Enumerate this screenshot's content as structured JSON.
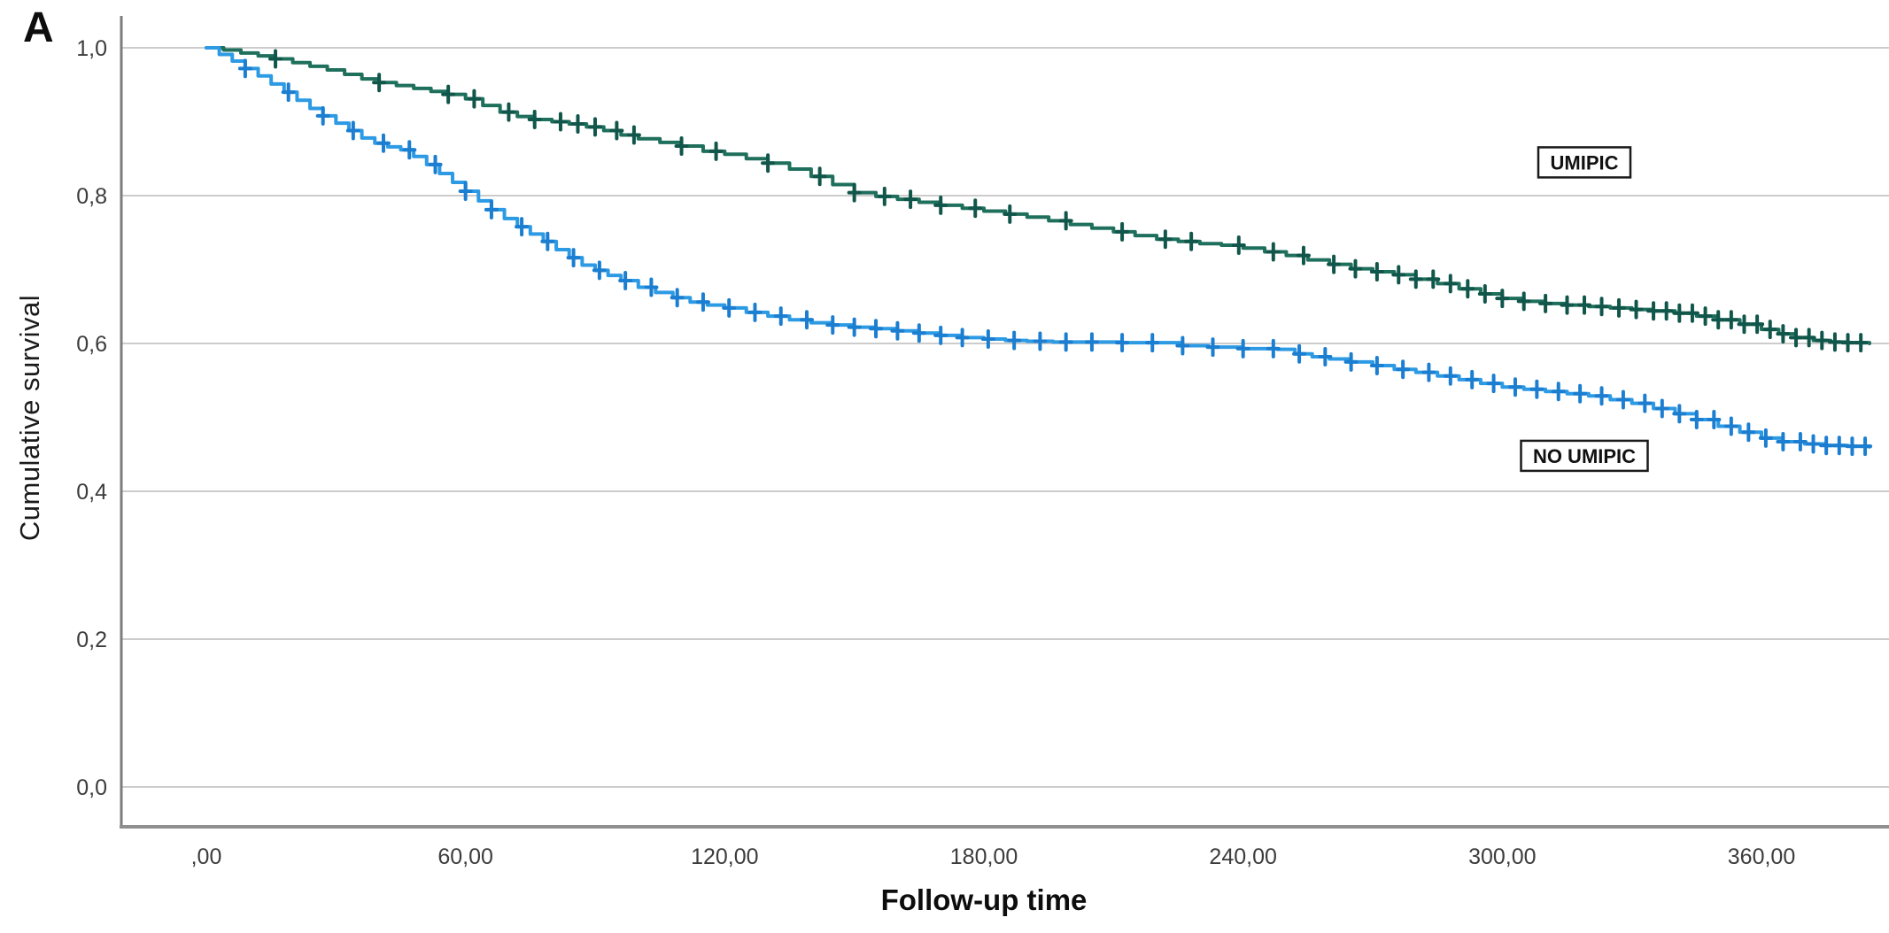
{
  "panel_label": "A",
  "chart_data": {
    "type": "line",
    "subtype": "kaplan-meier-survival",
    "title": "",
    "xlabel": "Follow-up time",
    "ylabel": "Cumulative survival",
    "xlim": [
      0,
      389
    ],
    "ylim": [
      0.0,
      1.0
    ],
    "grid": true,
    "grid_color": "#cccccc",
    "axis_color": "#8f8f8f",
    "tick_label_color": "#3c3c3c",
    "x_ticks": [
      {
        "value": 0,
        "label": ",00"
      },
      {
        "value": 60,
        "label": "60,00"
      },
      {
        "value": 120,
        "label": "120,00"
      },
      {
        "value": 180,
        "label": "180,00"
      },
      {
        "value": 240,
        "label": "240,00"
      },
      {
        "value": 300,
        "label": "300,00"
      },
      {
        "value": 360,
        "label": "360,00"
      }
    ],
    "y_ticks": [
      {
        "value": 1.0,
        "label": "1,0"
      },
      {
        "value": 0.8,
        "label": "0,8"
      },
      {
        "value": 0.6,
        "label": "0,6"
      },
      {
        "value": 0.4,
        "label": "0,4"
      },
      {
        "value": 0.2,
        "label": "0,2"
      },
      {
        "value": 0.0,
        "label": "0,0"
      }
    ],
    "series": [
      {
        "name": "UMIPIC",
        "color": "#1e6f5c",
        "censor_color": "#11564a",
        "label_box": {
          "text": "UMIPIC",
          "t": 319,
          "s": 0.845
        },
        "points": [
          [
            0,
            1.0
          ],
          [
            4,
            0.997
          ],
          [
            8,
            0.993
          ],
          [
            12,
            0.989
          ],
          [
            16,
            0.985
          ],
          [
            20,
            0.98
          ],
          [
            24,
            0.975
          ],
          [
            28,
            0.97
          ],
          [
            32,
            0.964
          ],
          [
            36,
            0.958
          ],
          [
            40,
            0.953
          ],
          [
            44,
            0.949
          ],
          [
            48,
            0.945
          ],
          [
            52,
            0.941
          ],
          [
            56,
            0.937
          ],
          [
            60,
            0.931
          ],
          [
            64,
            0.922
          ],
          [
            68,
            0.913
          ],
          [
            72,
            0.907
          ],
          [
            76,
            0.903
          ],
          [
            80,
            0.9
          ],
          [
            84,
            0.897
          ],
          [
            88,
            0.893
          ],
          [
            92,
            0.888
          ],
          [
            96,
            0.882
          ],
          [
            100,
            0.877
          ],
          [
            105,
            0.872
          ],
          [
            110,
            0.867
          ],
          [
            115,
            0.86
          ],
          [
            120,
            0.856
          ],
          [
            125,
            0.85
          ],
          [
            130,
            0.844
          ],
          [
            135,
            0.836
          ],
          [
            140,
            0.826
          ],
          [
            145,
            0.815
          ],
          [
            150,
            0.804
          ],
          [
            155,
            0.799
          ],
          [
            160,
            0.795
          ],
          [
            165,
            0.791
          ],
          [
            170,
            0.787
          ],
          [
            175,
            0.783
          ],
          [
            180,
            0.779
          ],
          [
            185,
            0.775
          ],
          [
            190,
            0.771
          ],
          [
            195,
            0.766
          ],
          [
            200,
            0.761
          ],
          [
            205,
            0.756
          ],
          [
            210,
            0.751
          ],
          [
            215,
            0.746
          ],
          [
            220,
            0.741
          ],
          [
            225,
            0.738
          ],
          [
            230,
            0.735
          ],
          [
            235,
            0.733
          ],
          [
            240,
            0.729
          ],
          [
            245,
            0.724
          ],
          [
            250,
            0.719
          ],
          [
            255,
            0.713
          ],
          [
            260,
            0.707
          ],
          [
            265,
            0.701
          ],
          [
            270,
            0.697
          ],
          [
            275,
            0.693
          ],
          [
            280,
            0.687
          ],
          [
            285,
            0.681
          ],
          [
            290,
            0.674
          ],
          [
            295,
            0.667
          ],
          [
            300,
            0.661
          ],
          [
            305,
            0.657
          ],
          [
            310,
            0.654
          ],
          [
            315,
            0.652
          ],
          [
            320,
            0.65
          ],
          [
            325,
            0.648
          ],
          [
            330,
            0.646
          ],
          [
            335,
            0.644
          ],
          [
            340,
            0.641
          ],
          [
            345,
            0.637
          ],
          [
            350,
            0.632
          ],
          [
            355,
            0.626
          ],
          [
            360,
            0.619
          ],
          [
            364,
            0.613
          ],
          [
            368,
            0.608
          ],
          [
            372,
            0.604
          ],
          [
            376,
            0.602
          ],
          [
            380,
            0.601
          ],
          [
            385,
            0.6
          ]
        ],
        "censor_times": [
          16,
          40,
          56,
          62,
          70,
          76,
          82,
          86,
          90,
          95,
          99,
          110,
          118,
          130,
          142,
          150,
          157,
          163,
          170,
          178,
          186,
          199,
          212,
          222,
          228,
          239,
          247,
          254,
          261,
          266,
          271,
          276,
          280,
          284,
          288,
          292,
          296,
          300,
          305,
          310,
          315,
          319,
          323,
          327,
          331,
          335,
          338,
          341,
          344,
          347,
          350,
          353,
          356,
          359,
          362,
          365,
          368,
          371,
          374,
          377,
          380,
          383
        ]
      },
      {
        "name": "NO UMIPIC",
        "color": "#2d9ae4",
        "censor_color": "#1b7ed0",
        "label_box": {
          "text": "NO UMIPIC",
          "t": 319,
          "s": 0.448
        },
        "points": [
          [
            0,
            1.0
          ],
          [
            3,
            0.991
          ],
          [
            6,
            0.982
          ],
          [
            9,
            0.972
          ],
          [
            12,
            0.962
          ],
          [
            15,
            0.951
          ],
          [
            18,
            0.94
          ],
          [
            21,
            0.929
          ],
          [
            24,
            0.918
          ],
          [
            27,
            0.908
          ],
          [
            30,
            0.898
          ],
          [
            33,
            0.888
          ],
          [
            36,
            0.878
          ],
          [
            39,
            0.871
          ],
          [
            42,
            0.866
          ],
          [
            45,
            0.862
          ],
          [
            48,
            0.853
          ],
          [
            51,
            0.842
          ],
          [
            54,
            0.83
          ],
          [
            57,
            0.818
          ],
          [
            60,
            0.806
          ],
          [
            63,
            0.793
          ],
          [
            66,
            0.781
          ],
          [
            69,
            0.769
          ],
          [
            72,
            0.758
          ],
          [
            75,
            0.748
          ],
          [
            78,
            0.738
          ],
          [
            81,
            0.727
          ],
          [
            84,
            0.716
          ],
          [
            87,
            0.706
          ],
          [
            90,
            0.699
          ],
          [
            93,
            0.692
          ],
          [
            96,
            0.685
          ],
          [
            100,
            0.676
          ],
          [
            104,
            0.669
          ],
          [
            108,
            0.662
          ],
          [
            112,
            0.656
          ],
          [
            116,
            0.652
          ],
          [
            120,
            0.648
          ],
          [
            125,
            0.642
          ],
          [
            130,
            0.637
          ],
          [
            135,
            0.632
          ],
          [
            140,
            0.628
          ],
          [
            145,
            0.625
          ],
          [
            150,
            0.622
          ],
          [
            155,
            0.62
          ],
          [
            160,
            0.617
          ],
          [
            165,
            0.614
          ],
          [
            170,
            0.611
          ],
          [
            175,
            0.608
          ],
          [
            180,
            0.606
          ],
          [
            185,
            0.604
          ],
          [
            190,
            0.603
          ],
          [
            196,
            0.602
          ],
          [
            204,
            0.602
          ],
          [
            212,
            0.601
          ],
          [
            220,
            0.601
          ],
          [
            226,
            0.597
          ],
          [
            232,
            0.595
          ],
          [
            240,
            0.593
          ],
          [
            248,
            0.592
          ],
          [
            252,
            0.586
          ],
          [
            256,
            0.582
          ],
          [
            260,
            0.579
          ],
          [
            265,
            0.575
          ],
          [
            270,
            0.57
          ],
          [
            275,
            0.565
          ],
          [
            280,
            0.561
          ],
          [
            285,
            0.556
          ],
          [
            290,
            0.551
          ],
          [
            295,
            0.546
          ],
          [
            300,
            0.541
          ],
          [
            305,
            0.538
          ],
          [
            310,
            0.535
          ],
          [
            315,
            0.532
          ],
          [
            320,
            0.529
          ],
          [
            325,
            0.524
          ],
          [
            330,
            0.519
          ],
          [
            335,
            0.512
          ],
          [
            340,
            0.505
          ],
          [
            345,
            0.497
          ],
          [
            350,
            0.488
          ],
          [
            355,
            0.48
          ],
          [
            360,
            0.472
          ],
          [
            365,
            0.467
          ],
          [
            370,
            0.464
          ],
          [
            375,
            0.462
          ],
          [
            380,
            0.461
          ],
          [
            385,
            0.46
          ]
        ],
        "censor_times": [
          9,
          19,
          27,
          34,
          41,
          47,
          53,
          60,
          66,
          73,
          79,
          85,
          91,
          97,
          103,
          109,
          115,
          121,
          127,
          133,
          139,
          145,
          150,
          155,
          160,
          165,
          170,
          175,
          181,
          187,
          193,
          199,
          205,
          212,
          219,
          226,
          233,
          240,
          247,
          253,
          259,
          265,
          271,
          277,
          283,
          288,
          293,
          298,
          303,
          308,
          313,
          318,
          323,
          328,
          333,
          337,
          341,
          345,
          349,
          353,
          357,
          361,
          365,
          369,
          372,
          375,
          378,
          381,
          384
        ]
      }
    ]
  }
}
